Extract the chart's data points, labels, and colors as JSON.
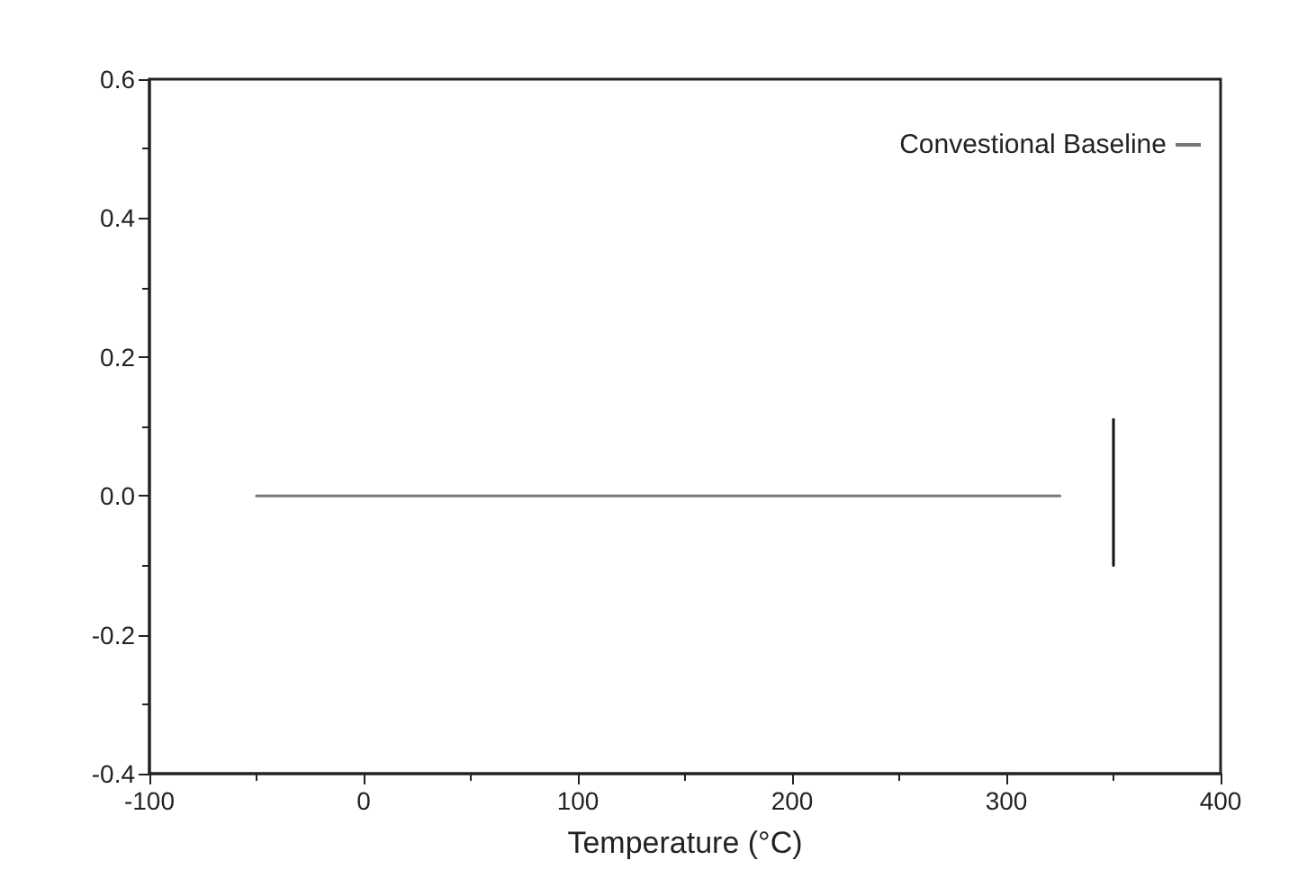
{
  "chart_data": {
    "type": "line",
    "xlabel": "Temperature (°C)",
    "xlim": [
      -100,
      400
    ],
    "xticks": [
      -100,
      0,
      100,
      200,
      300,
      400
    ],
    "ylim": [
      -0.4,
      0.6
    ],
    "yticks": [
      {
        "value": -0.4,
        "label": "-0.4"
      },
      {
        "value": -0.2,
        "label": "-0.2"
      },
      {
        "value": 0,
        "label": "0.0"
      },
      {
        "value": 0.2,
        "label": "0.2"
      },
      {
        "value": 0.4,
        "label": "0.4"
      },
      {
        "value": 0.6,
        "label": "0.6"
      }
    ],
    "legend": "top right",
    "grid": false,
    "marker": "none",
    "line_style": "solid",
    "series": [
      {
        "name": "Convestional Baseline",
        "color": "#777777",
        "x": [
          -50,
          325
        ],
        "values": [
          0,
          0
        ]
      },
      {
        "color": "#111111",
        "x": [
          350,
          350
        ],
        "values": [
          -0.1,
          0.11
        ]
      }
    ]
  }
}
